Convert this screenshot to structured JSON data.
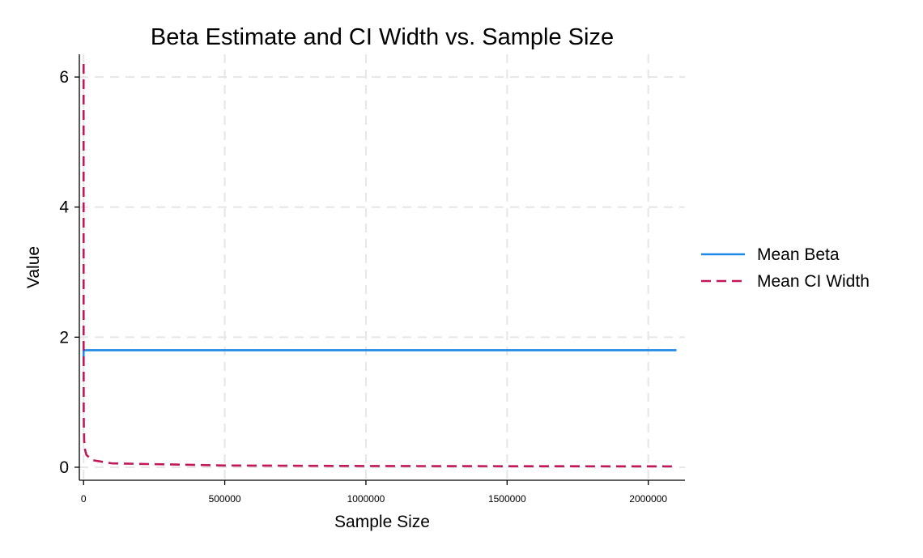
{
  "chart_data": {
    "type": "line",
    "title": "Beta Estimate and CI Width vs. Sample Size",
    "xlabel": "Sample Size",
    "ylabel": "Value",
    "xlim": [
      -15000,
      2130000
    ],
    "ylim": [
      -0.2,
      6.35
    ],
    "x_ticks": [
      0,
      500000,
      1000000,
      1500000,
      2000000
    ],
    "x_tick_labels": [
      "0",
      "500000",
      "1000000",
      "1500000",
      "2000000"
    ],
    "y_ticks": [
      0,
      2,
      4,
      6
    ],
    "y_tick_labels": [
      "0",
      "2",
      "4",
      "6"
    ],
    "grid": true,
    "legend_position": "right",
    "series": [
      {
        "name": "Mean Beta",
        "style": "solid",
        "color": "#1e88e5",
        "x": [
          10,
          100,
          1000,
          10000,
          100000,
          500000,
          1000000,
          1500000,
          2000000,
          2100000
        ],
        "y": [
          1.7,
          1.8,
          1.8,
          1.8,
          1.8,
          1.8,
          1.8,
          1.8,
          1.8,
          1.8
        ]
      },
      {
        "name": "Mean CI Width",
        "style": "dashed",
        "color": "#c2185b",
        "x": [
          10,
          100,
          500,
          1000,
          2000,
          5000,
          10000,
          30000,
          100000,
          500000,
          1000000,
          1500000,
          2000000,
          2100000
        ],
        "y": [
          6.2,
          1.9,
          0.85,
          0.6,
          0.42,
          0.27,
          0.19,
          0.11,
          0.06,
          0.027,
          0.019,
          0.016,
          0.014,
          0.013
        ]
      }
    ]
  }
}
